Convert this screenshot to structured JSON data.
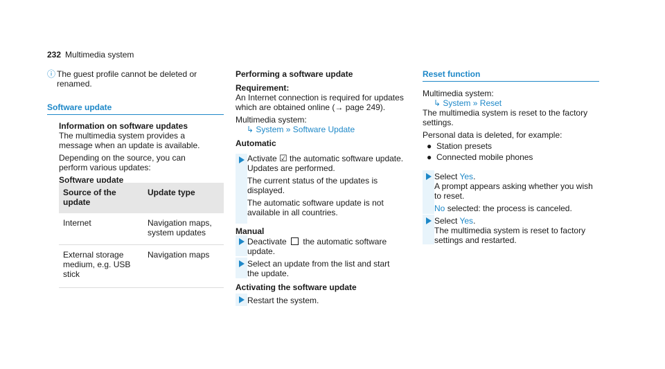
{
  "header": {
    "page_number": "232",
    "title": "Multimedia system"
  },
  "col1": {
    "note": "The guest profile cannot be deleted or renamed.",
    "section_title": "Software update",
    "info_heading": "Information on software updates",
    "info_text": "The multimedia system provides a message when an update is available.",
    "depending_text": "Depending on the source, you can perform various updates:",
    "table_caption": "Software update",
    "table": {
      "headers": [
        "Source of the update",
        "Update type"
      ],
      "rows": [
        [
          "Internet",
          "Navigation maps, system updates"
        ],
        [
          "External storage medium, e.g. USB stick",
          "Navigation maps"
        ]
      ]
    }
  },
  "col2": {
    "heading": "Performing a software update",
    "req_label": "Requirement:",
    "req_text": "An Internet connection is required for updates which are obtained online (→ page 249).",
    "path_intro": "Multimedia system:",
    "path": [
      "System",
      "Software Update"
    ],
    "automatic_label": "Automatic",
    "auto_step_1": "Activate",
    "auto_step_2": "the automatic software update.",
    "auto_step_3": "Updates are performed.",
    "auto_status": "The current status of the updates is displayed.",
    "auto_unavailable": "The automatic software update is not available in all countries.",
    "manual_label": "Manual",
    "manual_step_1a": "Deactivate",
    "manual_step_1b": "the automatic software update.",
    "manual_step_2": "Select an update from the list and start the update.",
    "activating_label": "Activating the software update",
    "activating_step": "Restart the system."
  },
  "col3": {
    "section_title": "Reset function",
    "path_intro": "Multimedia system:",
    "path": [
      "System",
      "Reset"
    ],
    "reset_text": "The multimedia system is reset to the factory settings.",
    "personal_text": "Personal data is deleted, for example:",
    "bullets": [
      "Station presets",
      "Connected mobile phones"
    ],
    "step1_select": "Select",
    "step1_yes": "Yes",
    "step1_text": "A prompt appears asking whether you wish to reset.",
    "no_option": "No",
    "no_text": "selected: the process is canceled.",
    "step2_select": "Select",
    "step2_yes": "Yes",
    "step2_text": "The multimedia system is reset to factory settings and restarted."
  },
  "colors": {
    "accent": "#1e88c8",
    "step_bg": "#e8f4fb",
    "table_header_bg": "#e6e6e6"
  }
}
